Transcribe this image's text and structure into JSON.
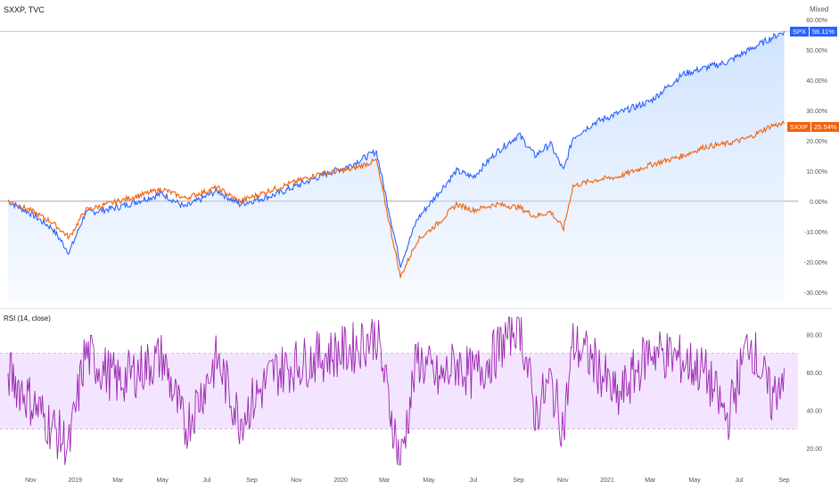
{
  "header": {
    "symbol_title": "SXXP, TVC",
    "scale_mode": "Mixed"
  },
  "price_tags": {
    "spx_symbol": "SPX",
    "spx_value": "56.11%",
    "sxxp_symbol": "SXXP",
    "sxxp_value": "25.54%"
  },
  "rsi_pane": {
    "label": "RSI (14, close)"
  },
  "colors": {
    "spx_line": "#2962ff",
    "sxxp_line": "#f4600c",
    "spx_fill": "#cfe2ff",
    "rsi_line": "#9c27b0",
    "rsi_band": "#f3e5ff",
    "zero_line": "#888888",
    "spx_tag_bg": "#2962ff",
    "sxxp_tag_bg": "#f4600c"
  },
  "chart_data": [
    {
      "type": "line",
      "x": [
        "2018-10-01",
        "2018-11-01",
        "2018-12-01",
        "2018-12-24",
        "2019-01-15",
        "2019-03-01",
        "2019-05-01",
        "2019-06-01",
        "2019-07-15",
        "2019-08-15",
        "2019-10-01",
        "2019-12-01",
        "2020-01-15",
        "2020-02-19",
        "2020-03-23",
        "2020-04-15",
        "2020-05-15",
        "2020-06-08",
        "2020-07-01",
        "2020-08-01",
        "2020-09-02",
        "2020-09-24",
        "2020-10-15",
        "2020-11-02",
        "2020-11-15",
        "2020-12-15",
        "2021-01-15",
        "2021-03-01",
        "2021-04-15",
        "2021-05-15",
        "2021-06-15",
        "2021-07-15",
        "2021-08-15",
        "2021-09-01"
      ],
      "series": [
        {
          "name": "SPX",
          "values": [
            0.0,
            -4.0,
            -9.0,
            -17.0,
            -4.0,
            -2.0,
            2.5,
            -2.0,
            3.5,
            -1.0,
            2.0,
            8.0,
            12.0,
            16.5,
            -21.0,
            -6.0,
            3.0,
            10.0,
            8.0,
            16.0,
            22.0,
            15.0,
            19.0,
            10.0,
            21.0,
            26.0,
            29.0,
            33.0,
            42.0,
            44.0,
            46.0,
            50.0,
            54.0,
            56.11
          ]
        },
        {
          "name": "SXXP",
          "values": [
            0.0,
            -3.0,
            -7.0,
            -12.0,
            -3.0,
            0.0,
            4.0,
            1.0,
            4.5,
            0.0,
            4.0,
            9.0,
            10.5,
            13.5,
            -25.0,
            -13.0,
            -7.0,
            -1.0,
            -3.0,
            -1.0,
            -2.0,
            -5.0,
            -3.5,
            -9.0,
            5.0,
            7.0,
            8.0,
            12.0,
            15.0,
            18.0,
            19.0,
            21.0,
            25.0,
            25.54
          ]
        }
      ],
      "ylabel_ticks": [
        "60.00%",
        "50.00%",
        "40.00%",
        "30.00%",
        "20.00%",
        "10.00%",
        "0.00%",
        "-10.00%",
        "-20.00%",
        "-30.00%"
      ],
      "ylim": [
        -33,
        60
      ],
      "grid": false,
      "legend": "none"
    },
    {
      "type": "line",
      "title": "RSI (14, close)",
      "x": [
        "2018-10-01",
        "2018-11-01",
        "2018-12-24",
        "2019-01-15",
        "2019-03-01",
        "2019-05-01",
        "2019-06-01",
        "2019-07-15",
        "2019-08-15",
        "2019-10-01",
        "2019-12-01",
        "2020-01-15",
        "2020-02-19",
        "2020-03-23",
        "2020-04-15",
        "2020-05-15",
        "2020-06-08",
        "2020-07-01",
        "2020-08-01",
        "2020-09-02",
        "2020-09-24",
        "2020-10-15",
        "2020-11-02",
        "2020-11-15",
        "2020-12-15",
        "2021-01-15",
        "2021-03-01",
        "2021-04-15",
        "2021-05-15",
        "2021-06-15",
        "2021-07-15",
        "2021-08-15",
        "2021-09-01"
      ],
      "series": [
        {
          "name": "RSI",
          "values": [
            60,
            45,
            20,
            70,
            55,
            68,
            30,
            67,
            35,
            60,
            68,
            72,
            80,
            12,
            68,
            55,
            65,
            58,
            70,
            88,
            38,
            55,
            30,
            75,
            65,
            45,
            72,
            66,
            60,
            35,
            78,
            45,
            62
          ]
        }
      ],
      "bands": [
        30,
        70
      ],
      "ylabel_ticks": [
        "80.00",
        "60.00",
        "40.00",
        "20.00"
      ],
      "ylim": [
        10,
        90
      ]
    }
  ],
  "x_axis": {
    "ticks": [
      "Nov",
      "2019",
      "Mar",
      "May",
      "Jul",
      "Sep",
      "Nov",
      "2020",
      "Mar",
      "May",
      "Jul",
      "Sep",
      "Nov",
      "2021",
      "Mar",
      "May",
      "Jul",
      "Sep"
    ]
  }
}
